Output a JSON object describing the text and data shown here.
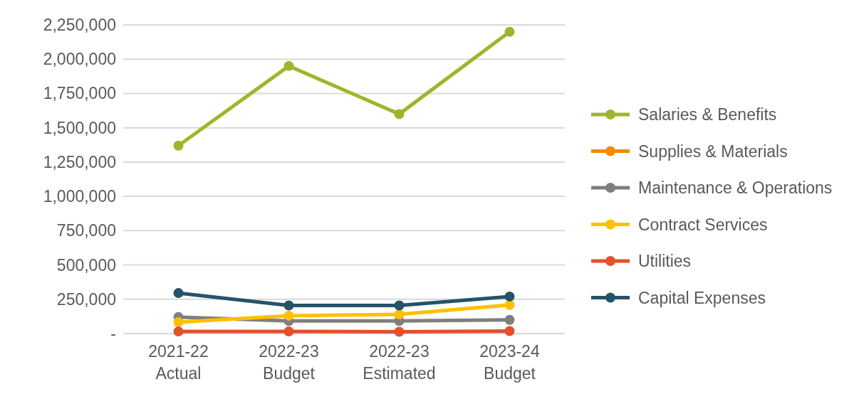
{
  "chart_data": {
    "type": "line",
    "categories": [
      "2021-22 Actual",
      "2022-23 Budget",
      "2022-23 Estimated",
      "2023-24 Budget"
    ],
    "series": [
      {
        "name": "Salaries & Benefits",
        "color": "#9fb52a",
        "values": [
          1370000,
          1950000,
          1600000,
          2200000
        ]
      },
      {
        "name": "Supplies & Materials",
        "color": "#f28c00",
        "values": [
          null,
          null,
          null,
          null
        ]
      },
      {
        "name": "Maintenance & Operations",
        "color": "#7f7f7f",
        "values": [
          120000,
          92000,
          92000,
          100000
        ]
      },
      {
        "name": "Contract Services",
        "color": "#ffc000",
        "values": [
          83000,
          130000,
          140000,
          209000
        ]
      },
      {
        "name": "Utilities",
        "color": "#e0522a",
        "values": [
          15000,
          15000,
          13000,
          18000
        ]
      },
      {
        "name": "Capital Expenses",
        "color": "#255369",
        "values": [
          295000,
          205000,
          205000,
          270000
        ]
      }
    ],
    "ylim": [
      0,
      2250000
    ],
    "yticks": [
      {
        "value": 0,
        "label": "-"
      },
      {
        "value": 250000,
        "label": "250,000"
      },
      {
        "value": 500000,
        "label": "500,000"
      },
      {
        "value": 750000,
        "label": "750,000"
      },
      {
        "value": 1000000,
        "label": "1,000,000"
      },
      {
        "value": 1250000,
        "label": "1,250,000"
      },
      {
        "value": 1500000,
        "label": "1,500,000"
      },
      {
        "value": 1750000,
        "label": "1,750,000"
      },
      {
        "value": 2000000,
        "label": "2,000,000"
      },
      {
        "value": 2250000,
        "label": "2,250,000"
      }
    ],
    "grid": "y",
    "legend": "right",
    "marker": "circle",
    "line_style": "solid"
  }
}
